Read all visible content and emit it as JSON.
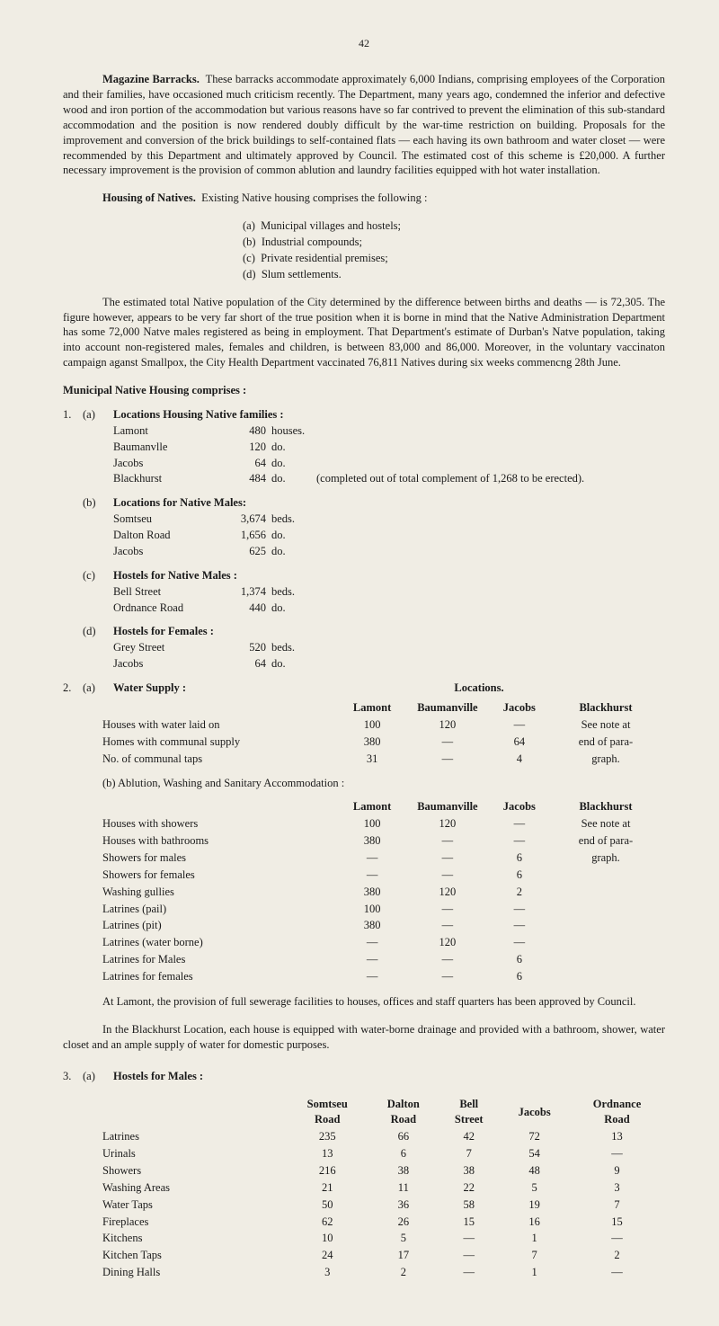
{
  "page_number": "42",
  "para1_lead": "Magazine Barracks.",
  "para1": "These barracks accommodate approximately 6,000 Indians, comprising employees of the Corporation and their families, have occasioned much criticism recently. The Department, many years ago, condemned the inferior and defective wood and iron portion of the accommodation but various reasons have so far contrived to prevent the elimination of this sub-standard accommodation and the position is now rendered doubly difficult by the war-time restriction on building. Proposals for the improvement and conversion of the brick buildings to self-contained flats — each having its own bathroom and water closet — were recommended by this Department and ultimately approved by Council. The estimated cost of this scheme is £20,000. A further necessary improvement is the provision of common ablution and laundry facilities equipped with hot water installation.",
  "para2_lead": "Housing of Natives.",
  "para2_tail": "Existing Native housing comprises the following :",
  "housing_items": {
    "a": "Municipal villages and hostels;",
    "b": "Industrial compounds;",
    "c": "Private residential premises;",
    "d": "Slum settlements."
  },
  "para3": "The estimated total Native population of the City determined by the difference between births and deaths — is 72,305. The figure however, appears to be very far short of the true position when it is borne in mind that the Native Administration Department has some 72,000 Natve males registered as being in employment. That Department's estimate of Durban's Natve population, taking into account non-registered males, females and children, is between 83,000 and 86,000. Moreover, in the voluntary vaccinaton campaign aganst Smallpox, the City Health Department vaccinated 76,811 Natives during six weeks commencng 28th June.",
  "muni_title": "Municipal Native Housing comprises :",
  "s1": {
    "num": "1.",
    "a": {
      "letter": "(a)",
      "title": "Locations Housing Native families :",
      "rows": [
        {
          "name": "Lamont",
          "qty": "480",
          "unit": "houses.",
          "tail": ""
        },
        {
          "name": "Baumanvlle",
          "qty": "120",
          "unit": "do.",
          "tail": ""
        },
        {
          "name": "Jacobs",
          "qty": "64",
          "unit": "do.",
          "tail": ""
        },
        {
          "name": "Blackhurst",
          "qty": "484",
          "unit": "do.",
          "tail": "(completed out of total complement of 1,268 to be erected)."
        }
      ]
    },
    "b": {
      "letter": "(b)",
      "title": "Locations for Native Males:",
      "rows": [
        {
          "name": "Somtseu",
          "qty": "3,674",
          "unit": "beds.",
          "tail": ""
        },
        {
          "name": "Dalton Road",
          "qty": "1,656",
          "unit": "do.",
          "tail": ""
        },
        {
          "name": "Jacobs",
          "qty": "625",
          "unit": "do.",
          "tail": ""
        }
      ]
    },
    "c": {
      "letter": "(c)",
      "title": "Hostels for Native Males :",
      "rows": [
        {
          "name": "Bell Street",
          "qty": "1,374",
          "unit": "beds.",
          "tail": ""
        },
        {
          "name": "Ordnance Road",
          "qty": "440",
          "unit": "do.",
          "tail": ""
        }
      ]
    },
    "d": {
      "letter": "(d)",
      "title": "Hostels for Females :",
      "rows": [
        {
          "name": "Grey Street",
          "qty": "520",
          "unit": "beds.",
          "tail": ""
        },
        {
          "name": "Jacobs",
          "qty": "64",
          "unit": "do.",
          "tail": ""
        }
      ]
    }
  },
  "s2": {
    "num": "2.",
    "a_letter": "(a)",
    "a_title": "Water Supply :",
    "loc_title": "Locations.",
    "headers": {
      "c1": "Lamont",
      "c2": "Baumanville",
      "c3": "Jacobs",
      "c4": "Blackhurst"
    },
    "rows": [
      {
        "label": "Houses with water laid on",
        "c1": "100",
        "c2": "120",
        "c3": "—",
        "c4": "See note at"
      },
      {
        "label": "Homes with communal supply",
        "c1": "380",
        "c2": "—",
        "c3": "64",
        "c4": "end of para-"
      },
      {
        "label": "No. of communal taps",
        "c1": "31",
        "c2": "—",
        "c3": "4",
        "c4": "graph."
      }
    ],
    "b_title": "(b)  Ablution, Washing and Sanitary Accommodation :",
    "b_headers": {
      "c1": "Lamont",
      "c2": "Baumanville",
      "c3": "Jacobs",
      "c4": "Blackhurst"
    },
    "b_rows": [
      {
        "label": "Houses with showers",
        "c1": "100",
        "c2": "120",
        "c3": "—",
        "c4": "See note at"
      },
      {
        "label": "Houses with bathrooms",
        "c1": "380",
        "c2": "—",
        "c3": "—",
        "c4": "end of para-"
      },
      {
        "label": "Showers for males",
        "c1": "—",
        "c2": "—",
        "c3": "6",
        "c4": "graph."
      },
      {
        "label": "Showers for females",
        "c1": "—",
        "c2": "—",
        "c3": "6",
        "c4": ""
      },
      {
        "label": "Washing gullies",
        "c1": "380",
        "c2": "120",
        "c3": "2",
        "c4": ""
      },
      {
        "label": "Latrines (pail)",
        "c1": "100",
        "c2": "—",
        "c3": "—",
        "c4": ""
      },
      {
        "label": "Latrines (pit)",
        "c1": "380",
        "c2": "—",
        "c3": "—",
        "c4": ""
      },
      {
        "label": "Latrines (water borne)",
        "c1": "—",
        "c2": "120",
        "c3": "—",
        "c4": ""
      },
      {
        "label": "Latrines for Males",
        "c1": "—",
        "c2": "—",
        "c3": "6",
        "c4": ""
      },
      {
        "label": "Latrines for females",
        "c1": "—",
        "c2": "—",
        "c3": "6",
        "c4": ""
      }
    ]
  },
  "para_lamont": "At Lamont, the provision of full sewerage facilities to houses, offices and staff quarters has been approved by Council.",
  "para_blackhurst": "In the Blackhurst Location, each house is equipped with water-borne drainage and provided with a bathroom, shower, water closet and an ample supply of water for domestic purposes.",
  "s3": {
    "num": "3.",
    "a_letter": "(a)",
    "a_title": "Hostels for Males :",
    "headers": {
      "c1": "Somtseu Road",
      "c2": "Dalton Road",
      "c3": "Bell Street",
      "c4": "Jacobs",
      "c5": "Ordnance Road"
    },
    "rows": [
      {
        "label": "Latrines",
        "c1": "235",
        "c2": "66",
        "c3": "42",
        "c4": "72",
        "c5": "13"
      },
      {
        "label": "Urinals",
        "c1": "13",
        "c2": "6",
        "c3": "7",
        "c4": "54",
        "c5": "—"
      },
      {
        "label": "Showers",
        "c1": "216",
        "c2": "38",
        "c3": "38",
        "c4": "48",
        "c5": "9"
      },
      {
        "label": "Washing Areas",
        "c1": "21",
        "c2": "11",
        "c3": "22",
        "c4": "5",
        "c5": "3"
      },
      {
        "label": "Water Taps",
        "c1": "50",
        "c2": "36",
        "c3": "58",
        "c4": "19",
        "c5": "7"
      },
      {
        "label": "Fireplaces",
        "c1": "62",
        "c2": "26",
        "c3": "15",
        "c4": "16",
        "c5": "15"
      },
      {
        "label": "Kitchens",
        "c1": "10",
        "c2": "5",
        "c3": "—",
        "c4": "1",
        "c5": "—"
      },
      {
        "label": "Kitchen Taps",
        "c1": "24",
        "c2": "17",
        "c3": "—",
        "c4": "7",
        "c5": "2"
      },
      {
        "label": "Dining Halls",
        "c1": "3",
        "c2": "2",
        "c3": "—",
        "c4": "1",
        "c5": "—"
      }
    ]
  }
}
